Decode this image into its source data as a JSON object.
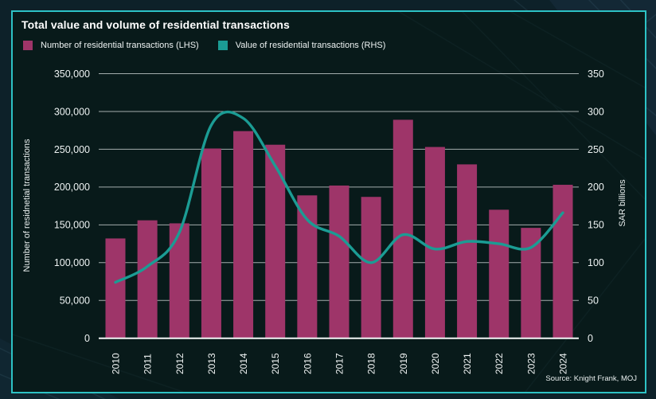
{
  "header": {
    "title": "Total value and volume of residential transactions"
  },
  "legend": [
    {
      "label": "Number of residential transactions (LHS)",
      "color": "#9e3569"
    },
    {
      "label": "Value of residential transactions (RHS)",
      "color": "#1b9c94"
    }
  ],
  "source": "Source: Knight Frank, MOJ",
  "colors": {
    "bar": "#9e3569",
    "line": "#1b9c94",
    "panel_border": "#2dc2c5",
    "panel_bg": "#081a1a",
    "page_bg": "#0d2129",
    "grid": "#bfc7c7",
    "axis_line": "#f2f5f5",
    "text": "#ffffff"
  },
  "chart_data": {
    "type": "bar",
    "title": "Total value and volume of residential transactions",
    "categories": [
      "2010",
      "2011",
      "2012",
      "2013",
      "2014",
      "2015",
      "2016",
      "2017",
      "2018",
      "2019",
      "2020",
      "2021",
      "2022",
      "2023",
      "2024"
    ],
    "series": [
      {
        "name": "Number of residential transactions (LHS)",
        "type": "bar",
        "axis": "left",
        "values": [
          132000,
          156000,
          152000,
          251000,
          274000,
          256000,
          189000,
          202000,
          187000,
          289000,
          253000,
          230000,
          170000,
          146000,
          203000
        ]
      },
      {
        "name": "Value of residential transactions (RHS)",
        "type": "line",
        "axis": "right",
        "values": [
          74,
          95,
          140,
          282,
          291,
          228,
          157,
          135,
          100,
          137,
          118,
          128,
          125,
          120,
          166
        ]
      }
    ],
    "left_axis": {
      "label": "Number of residnetial transactions",
      "min": 0,
      "max": 350000,
      "step": 50000,
      "ticks": [
        "350,000",
        "300,000",
        "250,000",
        "200,000",
        "150,000",
        "100,000",
        "50,000",
        "0"
      ]
    },
    "right_axis": {
      "label": "SAR billions",
      "min": 0,
      "max": 350,
      "step": 50,
      "ticks": [
        "350",
        "300",
        "250",
        "200",
        "150",
        "100",
        "50",
        "0"
      ]
    },
    "grid": true,
    "legend_position": "top-left"
  }
}
